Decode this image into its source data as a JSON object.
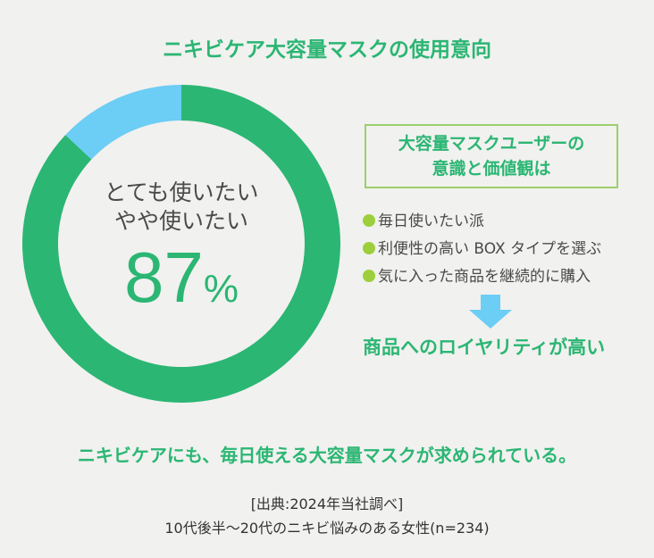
{
  "title": "ニキビケア大容量マスクの使用意向",
  "chart_data": {
    "type": "pie",
    "variant": "donut",
    "slices": [
      {
        "label": "とても使いたい・やや使いたい",
        "value": 87,
        "color": "#2bb673"
      },
      {
        "label": "",
        "value": 13,
        "color": "#6ccdf5"
      }
    ],
    "center_label": [
      "とても使いたい",
      "やや使いたい"
    ],
    "center_value": "87",
    "center_unit": "%"
  },
  "box": {
    "line1": "大容量マスクユーザーの",
    "line2": "意識と価値観は"
  },
  "bullets": [
    "毎日使いたい派",
    "利便性の高い BOX タイプを選ぶ",
    "気に入った商品を継続的に購入"
  ],
  "conclusion": "商品へのロイヤリティが高い",
  "bottom_message": "ニキビケアにも、毎日使える大容量マスクが求められている。",
  "source": {
    "line1": "[出典:2024年当社調べ]",
    "line2": "10代後半〜20代のニキビ悩みのある女性(n=234)"
  }
}
